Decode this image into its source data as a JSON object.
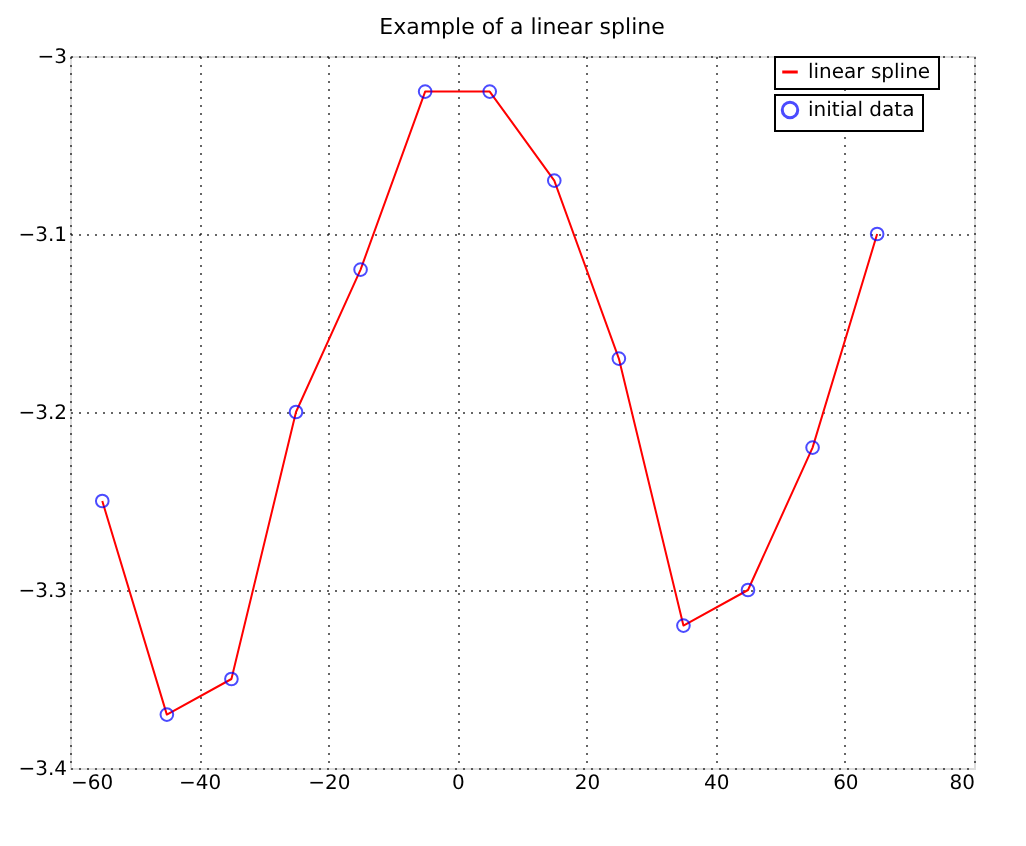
{
  "chart_data": {
    "type": "line",
    "title": "Example of a linear spline",
    "x": [
      -55,
      -45,
      -35,
      -25,
      -15,
      -5,
      5,
      15,
      25,
      35,
      45,
      55,
      65
    ],
    "series": [
      {
        "name": "linear spline",
        "color": "#ff0000",
        "marker": "none",
        "values": [
          -3.25,
          -3.37,
          -3.35,
          -3.2,
          -3.12,
          -3.02,
          -3.02,
          -3.07,
          -3.17,
          -3.32,
          -3.3,
          -3.22,
          -3.1
        ]
      },
      {
        "name": "initial data",
        "type": "scatter",
        "color": "#0000ff",
        "marker": "circle",
        "values": [
          -3.25,
          -3.37,
          -3.35,
          -3.2,
          -3.12,
          -3.02,
          -3.02,
          -3.07,
          -3.17,
          -3.32,
          -3.3,
          -3.22,
          -3.1
        ]
      }
    ],
    "xlim": [
      -60,
      80
    ],
    "xticks": [
      -60,
      -40,
      -20,
      0,
      20,
      40,
      60,
      80
    ],
    "ylim": [
      -3.4,
      -3
    ],
    "yticks": [
      -3.4,
      -3.3,
      -3.2,
      -3.1,
      -3
    ],
    "grid": true,
    "legend": "top right"
  }
}
